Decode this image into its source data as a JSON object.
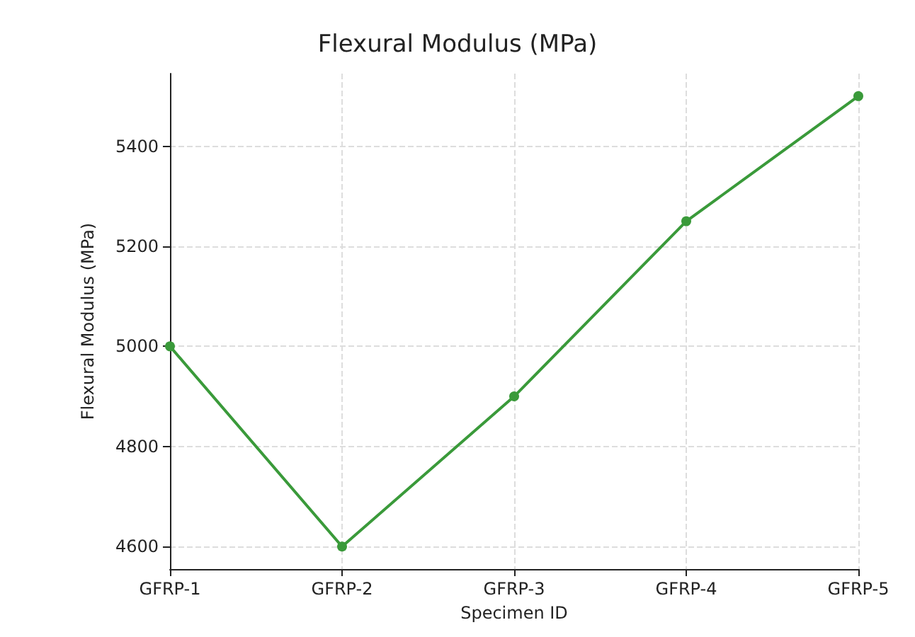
{
  "chart_data": {
    "type": "line",
    "title": "Flexural Modulus (MPa)",
    "xlabel": "Specimen ID",
    "ylabel": "Flexural Modulus (MPa)",
    "categories": [
      "GFRP-1",
      "GFRP-2",
      "GFRP-3",
      "GFRP-4",
      "GFRP-5"
    ],
    "series": [
      {
        "color": "#3a9a3a",
        "values": [
          5000,
          4600,
          4900,
          5250,
          5500
        ]
      }
    ],
    "ylim": [
      4555,
      5545
    ],
    "yticks": [
      4600,
      4800,
      5000,
      5200,
      5400
    ],
    "grid": true,
    "marker": "circle",
    "line_style": "solid"
  }
}
